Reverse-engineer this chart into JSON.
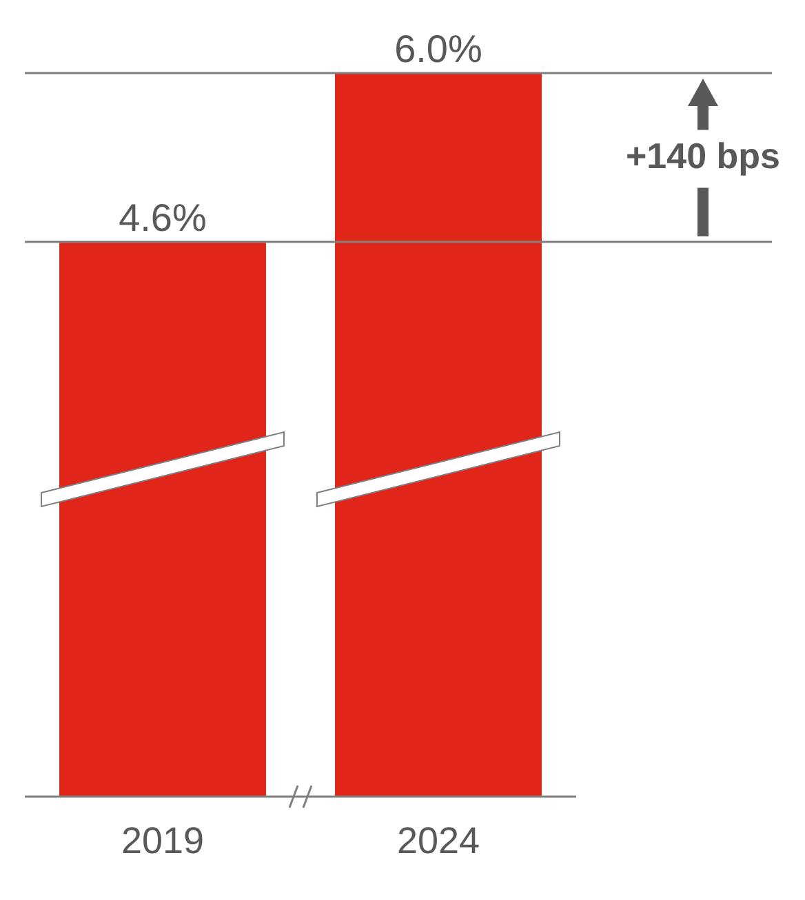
{
  "chart_data": {
    "type": "bar",
    "categories": [
      "2019",
      "2024"
    ],
    "values": [
      4.6,
      6.0
    ],
    "color": "#e02619",
    "value_labels": [
      "4.6%",
      "6.0%"
    ],
    "annotations": [
      "+140 bps"
    ],
    "ref_lines": [
      {
        "axis": "y",
        "value": 4.6,
        "label": null,
        "color": "#7f7f7f"
      },
      {
        "axis": "y",
        "value": 6.0,
        "label": null,
        "color": "#7f7f7f"
      }
    ],
    "data_labels": false
  }
}
